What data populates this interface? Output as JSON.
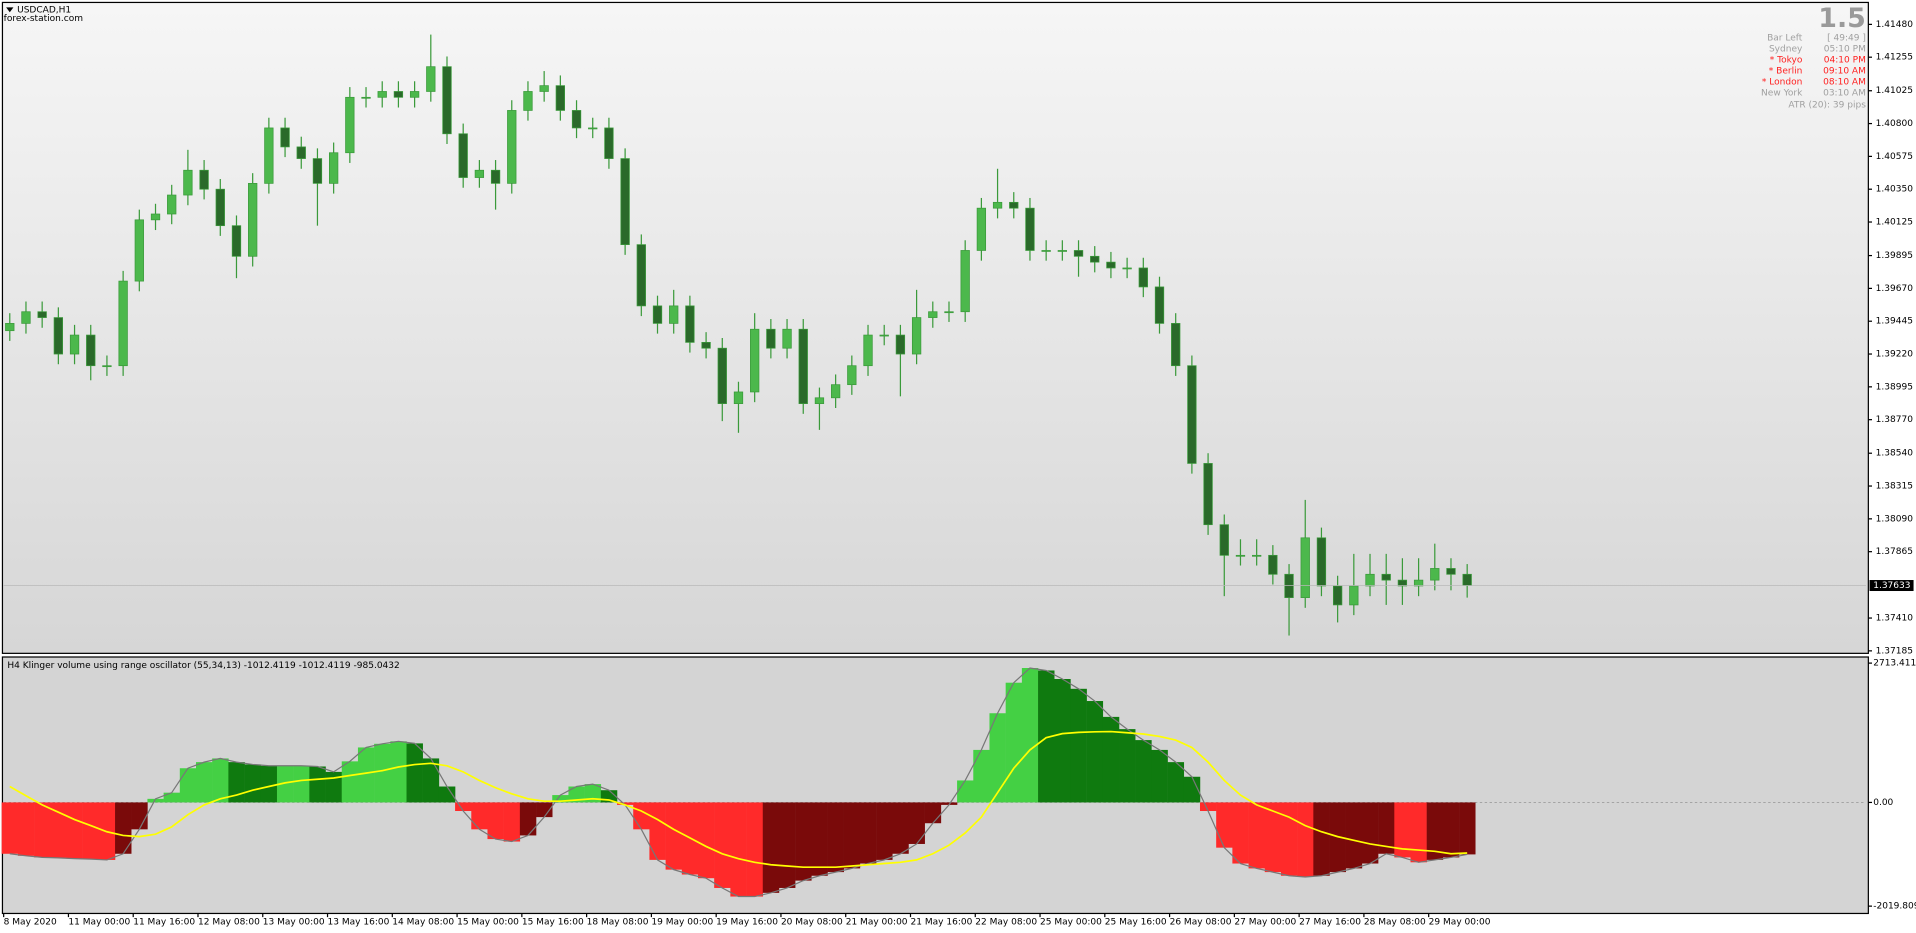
{
  "header": {
    "symbol": "USDCAD,H1",
    "site": "forex-station.com"
  },
  "info_panel": {
    "spread": "1.5",
    "rows": [
      {
        "label": "Bar Left",
        "value": "[ 49:49 ]",
        "color": "#a0a0a0"
      },
      {
        "label": "Sydney",
        "value": "05:10 PM",
        "color": "#a0a0a0"
      },
      {
        "label": "* Tokyo",
        "value": "04:10 PM",
        "color": "#ff2020"
      },
      {
        "label": "* Berlin",
        "value": "09:10 AM",
        "color": "#ff2020"
      },
      {
        "label": "* London",
        "value": "08:10 AM",
        "color": "#ff2020"
      },
      {
        "label": "New York",
        "value": "03:10 AM",
        "color": "#a0a0a0"
      }
    ],
    "atr": "ATR (20): 39 pips"
  },
  "chart_data": [
    {
      "type": "candlestick",
      "up_color": "#4cb84c",
      "down_color": "#2a6a2a",
      "wick_color": "#3a9a3a",
      "last_line_color": "#b8b8b8",
      "xlim": [
        0,
        115
      ],
      "ylim": [
        1.37168,
        1.41622
      ],
      "yticks": [
        {
          "value": 1.4148,
          "label": "1.41480"
        },
        1.41255,
        1.41025,
        {
          "value": 1.408,
          "label": "1.40800"
        },
        1.40575,
        {
          "value": 1.4035,
          "label": "1.40350"
        },
        1.40125,
        1.39895,
        {
          "value": 1.3967,
          "label": "1.39670"
        },
        1.39445,
        {
          "value": 1.3922,
          "label": "1.39220"
        },
        1.38995,
        {
          "value": 1.3877,
          "label": "1.38770"
        },
        {
          "value": 1.3854,
          "label": "1.38540"
        },
        1.38315,
        {
          "value": 1.3809,
          "label": "1.38090"
        },
        1.37865,
        {
          "value": 1.3741,
          "label": "1.37410"
        },
        1.37185
      ],
      "open": [
        1.3938,
        1.3943,
        1.3951,
        1.3947,
        1.3922,
        1.3935,
        1.3914,
        1.3914,
        1.3972,
        1.4014,
        1.4018,
        1.4031,
        1.4048,
        1.4035,
        1.401,
        1.3989,
        1.4039,
        1.4077,
        1.4064,
        1.4056,
        1.4039,
        1.406,
        1.4098,
        1.4098,
        1.4102,
        1.4098,
        1.4102,
        1.4119,
        1.4073,
        1.4043,
        1.4048,
        1.4039,
        1.4089,
        1.4102,
        1.4106,
        1.4089,
        1.4077,
        1.4077,
        1.4056,
        1.3997,
        1.3955,
        1.3943,
        1.3955,
        1.393,
        1.3926,
        1.3888,
        1.3896,
        1.3939,
        1.3926,
        1.3939,
        1.3888,
        1.3892,
        1.3901,
        1.3914,
        1.3935,
        1.3935,
        1.3922,
        1.3947,
        1.3951,
        1.3951,
        1.3993,
        1.4022,
        1.4026,
        1.4022,
        1.3993,
        1.3993,
        1.3993,
        1.3989,
        1.3985,
        1.3981,
        1.3981,
        1.3968,
        1.3943,
        1.3914,
        1.3847,
        1.3805,
        1.3784,
        1.3784,
        1.3784,
        1.3771,
        1.3755,
        1.3796,
        1.3763,
        1.375,
        1.3763,
        1.3771,
        1.3767,
        1.3763,
        1.3767,
        1.3775,
        1.3771
      ],
      "high": [
        1.395,
        1.3958,
        1.3958,
        1.3954,
        1.3942,
        1.3942,
        1.3921,
        1.3979,
        1.4021,
        1.4025,
        1.4038,
        1.4062,
        1.4055,
        1.4042,
        1.4017,
        1.4046,
        1.4084,
        1.4084,
        1.4071,
        1.4063,
        1.4067,
        1.4105,
        1.4105,
        1.4109,
        1.4109,
        1.4109,
        1.4141,
        1.4126,
        1.408,
        1.4055,
        1.4055,
        1.4096,
        1.4109,
        1.4116,
        1.4113,
        1.4096,
        1.4084,
        1.4084,
        1.4063,
        1.4004,
        1.3962,
        1.3966,
        1.3962,
        1.3937,
        1.3933,
        1.3903,
        1.395,
        1.3946,
        1.3946,
        1.3946,
        1.3899,
        1.3908,
        1.3921,
        1.3942,
        1.3942,
        1.3942,
        1.3966,
        1.3958,
        1.3958,
        1.4,
        1.4029,
        1.4049,
        1.4033,
        1.4029,
        1.4,
        1.4,
        1.4,
        1.3996,
        1.3992,
        1.3988,
        1.3988,
        1.3975,
        1.395,
        1.3921,
        1.3854,
        1.3812,
        1.3795,
        1.3795,
        1.3791,
        1.3778,
        1.3822,
        1.3803,
        1.377,
        1.3785,
        1.3785,
        1.3785,
        1.3782,
        1.3782,
        1.3792,
        1.3782,
        1.3778
      ],
      "low": [
        1.3931,
        1.3936,
        1.394,
        1.3915,
        1.3915,
        1.3904,
        1.3907,
        1.3907,
        1.3965,
        1.4007,
        1.4011,
        1.4024,
        1.4028,
        1.4003,
        1.3974,
        1.3982,
        1.4032,
        1.4057,
        1.4049,
        1.401,
        1.4032,
        1.4053,
        1.4091,
        1.4091,
        1.4091,
        1.4091,
        1.4095,
        1.4066,
        1.4036,
        1.4036,
        1.4021,
        1.4032,
        1.4082,
        1.4095,
        1.4082,
        1.407,
        1.407,
        1.4049,
        1.399,
        1.3948,
        1.3936,
        1.3936,
        1.3923,
        1.3919,
        1.3876,
        1.3868,
        1.3889,
        1.3919,
        1.3919,
        1.3881,
        1.387,
        1.3885,
        1.3894,
        1.3907,
        1.3928,
        1.3893,
        1.3915,
        1.394,
        1.3944,
        1.3944,
        1.3986,
        1.4015,
        1.4015,
        1.3986,
        1.3986,
        1.3986,
        1.3975,
        1.3978,
        1.3974,
        1.3974,
        1.3961,
        1.3936,
        1.3907,
        1.384,
        1.3798,
        1.3756,
        1.3777,
        1.3777,
        1.3764,
        1.3729,
        1.3748,
        1.3756,
        1.3738,
        1.3743,
        1.3756,
        1.375,
        1.375,
        1.3756,
        1.376,
        1.376,
        1.3755
      ],
      "close": [
        1.3943,
        1.3951,
        1.3947,
        1.3922,
        1.3935,
        1.3914,
        1.3914,
        1.3972,
        1.4014,
        1.4018,
        1.4031,
        1.4048,
        1.4035,
        1.401,
        1.3989,
        1.4039,
        1.4077,
        1.4064,
        1.4056,
        1.4039,
        1.406,
        1.4098,
        1.4098,
        1.4102,
        1.4098,
        1.4102,
        1.4119,
        1.4073,
        1.4043,
        1.4048,
        1.4039,
        1.4089,
        1.4102,
        1.4106,
        1.4089,
        1.4077,
        1.4077,
        1.4056,
        1.3997,
        1.3955,
        1.3943,
        1.3955,
        1.393,
        1.3926,
        1.3888,
        1.3896,
        1.3939,
        1.3926,
        1.3939,
        1.3888,
        1.3892,
        1.3901,
        1.3914,
        1.3935,
        1.3935,
        1.3922,
        1.3947,
        1.3951,
        1.3951,
        1.3993,
        1.4022,
        1.4026,
        1.4022,
        1.3993,
        1.3993,
        1.3993,
        1.3989,
        1.3985,
        1.3981,
        1.3981,
        1.3968,
        1.3943,
        1.3914,
        1.3847,
        1.3805,
        1.3784,
        1.3784,
        1.3784,
        1.3771,
        1.3755,
        1.3796,
        1.3763,
        1.375,
        1.3763,
        1.3771,
        1.3767,
        1.3763,
        1.3767,
        1.3775,
        1.3771,
        1.37633
      ]
    },
    {
      "type": "histogram",
      "title": "H4 Klinger volume using range oscillator (55,34,13) -1012.4119 -1012.4119 -985.0432",
      "bar_colors": [
        "#44d044",
        "#0f7a0f",
        "#ff2a2a",
        "#7a0a0a"
      ],
      "outline_color": "#777777",
      "signal_color": "#ffff00",
      "zero_line": true,
      "xlim": [
        0,
        115
      ],
      "ylim": [
        -2019.809,
        2713.4112
      ],
      "yticks": [
        2713.4112,
        {
          "value": 0,
          "label": "0.00"
        },
        -2019.809
      ],
      "xticks": [
        {
          "value": 0,
          "label": "8 May 2020"
        },
        {
          "value": 4,
          "label": "11 May 00:00"
        },
        {
          "value": 8,
          "label": "11 May 16:00"
        },
        {
          "value": 12,
          "label": "12 May 08:00"
        },
        {
          "value": 16,
          "label": "13 May 00:00"
        },
        {
          "value": 20,
          "label": "13 May 16:00"
        },
        {
          "value": 24,
          "label": "14 May 08:00"
        },
        {
          "value": 28,
          "label": "15 May 00:00"
        },
        {
          "value": 32,
          "label": "15 May 16:00"
        },
        {
          "value": 36,
          "label": "18 May 08:00"
        },
        {
          "value": 40,
          "label": "19 May 00:00"
        },
        {
          "value": 44,
          "label": "19 May 16:00"
        },
        {
          "value": 48,
          "label": "20 May 08:00"
        },
        {
          "value": 52,
          "label": "21 May 00:00"
        },
        {
          "value": 56,
          "label": "21 May 16:00"
        },
        {
          "value": 60,
          "label": "22 May 08:00"
        },
        {
          "value": 64,
          "label": "25 May 00:00"
        },
        {
          "value": 68,
          "label": "25 May 16:00"
        },
        {
          "value": 72,
          "label": "26 May 08:00"
        },
        {
          "value": 76,
          "label": "27 May 00:00"
        },
        {
          "value": 80,
          "label": "27 May 16:00"
        },
        {
          "value": 84,
          "label": "28 May 08:00"
        },
        {
          "value": 88,
          "label": "29 May 00:00"
        }
      ],
      "values": [
        -1000,
        -1040,
        -1070,
        -1080,
        -1095,
        -1105,
        -1120,
        -1000,
        -524,
        70,
        190,
        666,
        785,
        857,
        785,
        740,
        714,
        714,
        714,
        700,
        595,
        800,
        1071,
        1142,
        1190,
        1150,
        857,
        310,
        -167,
        -524,
        -714,
        -762,
        -643,
        -286,
        143,
        310,
        357,
        238,
        -48,
        -524,
        -1119,
        -1309,
        -1404,
        -1476,
        -1666,
        -1833,
        -1833,
        -1761,
        -1666,
        -1523,
        -1428,
        -1357,
        -1285,
        -1190,
        -1119,
        -1000,
        -809,
        -405,
        -48,
        428,
        1023,
        1737,
        2332,
        2618,
        2570,
        2404,
        2213,
        1975,
        1666,
        1428,
        1214,
        1023,
        785,
        500,
        -167,
        -881,
        -1190,
        -1285,
        -1357,
        -1428,
        -1452,
        -1428,
        -1357,
        -1285,
        -1190,
        -1000,
        -1071,
        -1166,
        -1119,
        -1071,
        -1012.4119
      ],
      "signal": [
        310,
        130,
        -48,
        -190,
        -333,
        -450,
        -571,
        -643,
        -666,
        -619,
        -476,
        -238,
        -48,
        71,
        143,
        238,
        310,
        381,
        428,
        452,
        476,
        524,
        571,
        619,
        690,
        738,
        762,
        714,
        595,
        428,
        286,
        167,
        71,
        24,
        24,
        48,
        71,
        48,
        -48,
        -167,
        -333,
        -524,
        -690,
        -857,
        -1000,
        -1095,
        -1166,
        -1214,
        -1238,
        -1261,
        -1261,
        -1261,
        -1238,
        -1214,
        -1190,
        -1166,
        -1119,
        -1000,
        -833,
        -595,
        -286,
        190,
        666,
        1023,
        1261,
        1340,
        1365,
        1375,
        1380,
        1357,
        1333,
        1285,
        1214,
        1071,
        785,
        428,
        143,
        -48,
        -167,
        -286,
        -452,
        -571,
        -666,
        -738,
        -809,
        -857,
        -905,
        -928,
        -952,
        -1000,
        -985.0432
      ]
    }
  ]
}
